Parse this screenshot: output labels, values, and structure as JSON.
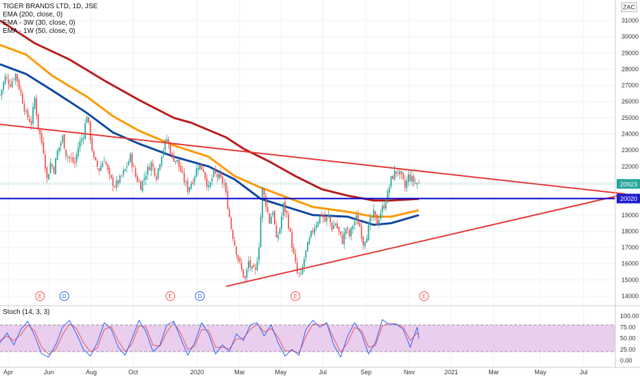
{
  "legend": {
    "title": "TIGER BRANDS LTD, 1D, JSE",
    "lines": [
      "EMA (200, close, 0)",
      "EMA - 3W (30, close, 0)",
      "EMA - 1W (50, close, 0)"
    ]
  },
  "currency_label": "ZAC",
  "stoch_label": "Stoch (14, 3, 3)",
  "price_tags": [
    {
      "value": "20923",
      "color": "#26a69a"
    },
    {
      "value": "20020",
      "color": "#1e1ecc"
    }
  ],
  "colors": {
    "up": "#26a69a",
    "down": "#ef5350",
    "ema200": "#b71c1c",
    "ema3w": "#ff9800",
    "ema1w": "#0d47a1",
    "trend": "#e53935",
    "support": "#0000cc",
    "stoch_k": "#2962ff",
    "stoch_d": "#ef5350",
    "stoch_band": "#e1bee7"
  },
  "chart_data": [
    {
      "type": "candlestick",
      "x_ticks": [
        "Apr",
        "Jun",
        "Aug",
        "Oct",
        "2020",
        "Mar",
        "May",
        "Jul",
        "Sep",
        "Nov",
        "2021",
        "Mar",
        "May",
        "Jul"
      ],
      "y_ticks": [
        14000,
        15000,
        16000,
        17000,
        18000,
        19000,
        20000,
        21000,
        22000,
        23000,
        24000,
        25000,
        26000,
        27000,
        28000,
        29000,
        30000,
        31000
      ],
      "ylim": [
        14000,
        31000
      ],
      "last_price": 20923,
      "support_level": 20020,
      "price_path": [
        [
          0,
          26400
        ],
        [
          3,
          27500
        ],
        [
          6,
          27100
        ],
        [
          9,
          27700
        ],
        [
          12,
          26500
        ],
        [
          15,
          25200
        ],
        [
          18,
          24700
        ],
        [
          20,
          26200
        ],
        [
          22,
          24400
        ],
        [
          25,
          23000
        ],
        [
          27,
          21200
        ],
        [
          29,
          22200
        ],
        [
          31,
          21800
        ],
        [
          33,
          22900
        ],
        [
          36,
          23800
        ],
        [
          38,
          22800
        ],
        [
          40,
          22500
        ],
        [
          43,
          22200
        ],
        [
          45,
          23200
        ],
        [
          48,
          24000
        ],
        [
          50,
          25200
        ],
        [
          52,
          23800
        ],
        [
          54,
          22400
        ],
        [
          57,
          21800
        ],
        [
          60,
          22500
        ],
        [
          63,
          21300
        ],
        [
          66,
          20800
        ],
        [
          69,
          21200
        ],
        [
          72,
          21800
        ],
        [
          75,
          22600
        ],
        [
          78,
          21400
        ],
        [
          81,
          20800
        ],
        [
          84,
          21600
        ],
        [
          87,
          22200
        ],
        [
          90,
          21400
        ],
        [
          93,
          22800
        ],
        [
          96,
          23700
        ],
        [
          99,
          22600
        ],
        [
          102,
          22300
        ],
        [
          105,
          21400
        ],
        [
          108,
          20600
        ],
        [
          111,
          21200
        ],
        [
          114,
          22100
        ],
        [
          117,
          21800
        ],
        [
          120,
          20600
        ],
        [
          123,
          21600
        ],
        [
          126,
          21300
        ],
        [
          129,
          20900
        ],
        [
          131,
          19600
        ],
        [
          133,
          18200
        ],
        [
          135,
          17200
        ],
        [
          137,
          16300
        ],
        [
          139,
          15600
        ],
        [
          141,
          15000
        ],
        [
          143,
          16100
        ],
        [
          145,
          15600
        ],
        [
          147,
          15500
        ],
        [
          149,
          17200
        ],
        [
          151,
          20600
        ],
        [
          153,
          19700
        ],
        [
          155,
          18600
        ],
        [
          157,
          19300
        ],
        [
          159,
          17400
        ],
        [
          161,
          18200
        ],
        [
          163,
          19600
        ],
        [
          165,
          19000
        ],
        [
          167,
          17800
        ],
        [
          169,
          16500
        ],
        [
          171,
          15400
        ],
        [
          173,
          15200
        ],
        [
          175,
          16300
        ],
        [
          177,
          17100
        ],
        [
          179,
          17800
        ],
        [
          181,
          18300
        ],
        [
          183,
          18700
        ],
        [
          185,
          19100
        ],
        [
          187,
          18600
        ],
        [
          189,
          18900
        ],
        [
          191,
          18200
        ],
        [
          193,
          18500
        ],
        [
          195,
          17900
        ],
        [
          197,
          17400
        ],
        [
          199,
          18200
        ],
        [
          201,
          17700
        ],
        [
          203,
          18400
        ],
        [
          205,
          18800
        ],
        [
          207,
          18300
        ],
        [
          209,
          17300
        ],
        [
          211,
          17800
        ],
        [
          213,
          18600
        ],
        [
          215,
          19100
        ],
        [
          217,
          18500
        ],
        [
          219,
          19200
        ],
        [
          221,
          19600
        ],
        [
          223,
          20300
        ],
        [
          225,
          21200
        ],
        [
          227,
          21600
        ],
        [
          229,
          21700
        ],
        [
          231,
          21300
        ],
        [
          233,
          20700
        ],
        [
          235,
          21400
        ],
        [
          237,
          21200
        ],
        [
          239,
          21000
        ],
        [
          241,
          20923
        ]
      ],
      "ema200_path": [
        [
          0,
          31000
        ],
        [
          20,
          29600
        ],
        [
          40,
          28600
        ],
        [
          60,
          27300
        ],
        [
          80,
          26100
        ],
        [
          100,
          25000
        ],
        [
          110,
          24700
        ],
        [
          130,
          23800
        ],
        [
          140,
          23100
        ],
        [
          155,
          22300
        ],
        [
          170,
          21400
        ],
        [
          185,
          20600
        ],
        [
          200,
          20200
        ],
        [
          215,
          19900
        ],
        [
          225,
          19900
        ],
        [
          241,
          20000
        ]
      ],
      "ema3w_path": [
        [
          0,
          29500
        ],
        [
          15,
          28900
        ],
        [
          30,
          27600
        ],
        [
          50,
          26300
        ],
        [
          65,
          25100
        ],
        [
          80,
          24200
        ],
        [
          100,
          23300
        ],
        [
          120,
          22600
        ],
        [
          135,
          21400
        ],
        [
          150,
          20700
        ],
        [
          165,
          20100
        ],
        [
          180,
          19500
        ],
        [
          200,
          19200
        ],
        [
          215,
          18900
        ],
        [
          225,
          18900
        ],
        [
          241,
          19300
        ]
      ],
      "ema1w_path": [
        [
          0,
          28300
        ],
        [
          15,
          27700
        ],
        [
          30,
          26700
        ],
        [
          50,
          25300
        ],
        [
          65,
          24100
        ],
        [
          80,
          23400
        ],
        [
          100,
          22600
        ],
        [
          120,
          22000
        ],
        [
          135,
          21200
        ],
        [
          150,
          20000
        ],
        [
          165,
          19500
        ],
        [
          180,
          19000
        ],
        [
          200,
          18900
        ],
        [
          215,
          18400
        ],
        [
          225,
          18500
        ],
        [
          241,
          19000
        ]
      ],
      "trendlines": [
        {
          "from": [
            0,
            24600
          ],
          "to": [
            360,
            20300
          ]
        },
        {
          "from": [
            130,
            14600
          ],
          "to": [
            360,
            20300
          ]
        }
      ],
      "events": [
        {
          "label": "E",
          "x": 23
        },
        {
          "label": "D",
          "x": 37
        },
        {
          "label": "E",
          "x": 98
        },
        {
          "label": "D",
          "x": 115
        },
        {
          "label": "E",
          "x": 170
        },
        {
          "label": "E",
          "x": 244
        }
      ]
    },
    {
      "type": "line",
      "title": "Stoch (14, 3, 3)",
      "y_ticks": [
        "0.00",
        "25.00",
        "50.00",
        "75.00",
        "100.00"
      ],
      "ylim": [
        0,
        100
      ],
      "band": [
        20,
        80
      ],
      "k_path": [
        [
          0,
          40
        ],
        [
          4,
          62
        ],
        [
          8,
          35
        ],
        [
          12,
          70
        ],
        [
          16,
          88
        ],
        [
          20,
          55
        ],
        [
          24,
          15
        ],
        [
          28,
          8
        ],
        [
          32,
          35
        ],
        [
          36,
          75
        ],
        [
          40,
          90
        ],
        [
          44,
          60
        ],
        [
          48,
          25
        ],
        [
          52,
          10
        ],
        [
          56,
          40
        ],
        [
          60,
          85
        ],
        [
          64,
          70
        ],
        [
          68,
          30
        ],
        [
          72,
          12
        ],
        [
          76,
          50
        ],
        [
          80,
          90
        ],
        [
          84,
          65
        ],
        [
          88,
          20
        ],
        [
          92,
          35
        ],
        [
          96,
          80
        ],
        [
          100,
          88
        ],
        [
          104,
          50
        ],
        [
          108,
          12
        ],
        [
          112,
          40
        ],
        [
          116,
          85
        ],
        [
          120,
          60
        ],
        [
          124,
          15
        ],
        [
          128,
          35
        ],
        [
          132,
          20
        ],
        [
          136,
          60
        ],
        [
          140,
          45
        ],
        [
          144,
          80
        ],
        [
          148,
          85
        ],
        [
          152,
          55
        ],
        [
          156,
          80
        ],
        [
          160,
          40
        ],
        [
          164,
          10
        ],
        [
          168,
          25
        ],
        [
          172,
          12
        ],
        [
          176,
          70
        ],
        [
          180,
          90
        ],
        [
          184,
          75
        ],
        [
          188,
          85
        ],
        [
          192,
          35
        ],
        [
          196,
          8
        ],
        [
          200,
          55
        ],
        [
          204,
          85
        ],
        [
          208,
          60
        ],
        [
          212,
          15
        ],
        [
          216,
          40
        ],
        [
          220,
          92
        ],
        [
          224,
          80
        ],
        [
          228,
          82
        ],
        [
          232,
          70
        ],
        [
          236,
          30
        ],
        [
          240,
          75
        ],
        [
          241,
          50
        ]
      ],
      "d_path": [
        [
          0,
          45
        ],
        [
          4,
          55
        ],
        [
          8,
          45
        ],
        [
          12,
          58
        ],
        [
          16,
          80
        ],
        [
          20,
          66
        ],
        [
          24,
          30
        ],
        [
          28,
          14
        ],
        [
          32,
          25
        ],
        [
          36,
          58
        ],
        [
          40,
          82
        ],
        [
          44,
          72
        ],
        [
          48,
          40
        ],
        [
          52,
          20
        ],
        [
          56,
          28
        ],
        [
          60,
          70
        ],
        [
          64,
          76
        ],
        [
          68,
          45
        ],
        [
          72,
          20
        ],
        [
          76,
          38
        ],
        [
          80,
          78
        ],
        [
          84,
          75
        ],
        [
          88,
          35
        ],
        [
          92,
          32
        ],
        [
          96,
          64
        ],
        [
          100,
          85
        ],
        [
          104,
          62
        ],
        [
          108,
          25
        ],
        [
          112,
          32
        ],
        [
          116,
          70
        ],
        [
          120,
          68
        ],
        [
          124,
          30
        ],
        [
          128,
          30
        ],
        [
          132,
          26
        ],
        [
          136,
          48
        ],
        [
          140,
          50
        ],
        [
          144,
          70
        ],
        [
          148,
          82
        ],
        [
          152,
          64
        ],
        [
          156,
          72
        ],
        [
          160,
          52
        ],
        [
          164,
          22
        ],
        [
          168,
          22
        ],
        [
          172,
          17
        ],
        [
          176,
          54
        ],
        [
          180,
          82
        ],
        [
          184,
          80
        ],
        [
          188,
          82
        ],
        [
          192,
          50
        ],
        [
          196,
          18
        ],
        [
          200,
          40
        ],
        [
          204,
          74
        ],
        [
          208,
          68
        ],
        [
          212,
          30
        ],
        [
          216,
          34
        ],
        [
          220,
          78
        ],
        [
          224,
          84
        ],
        [
          228,
          82
        ],
        [
          232,
          75
        ],
        [
          236,
          45
        ],
        [
          240,
          62
        ],
        [
          241,
          58
        ]
      ]
    }
  ]
}
